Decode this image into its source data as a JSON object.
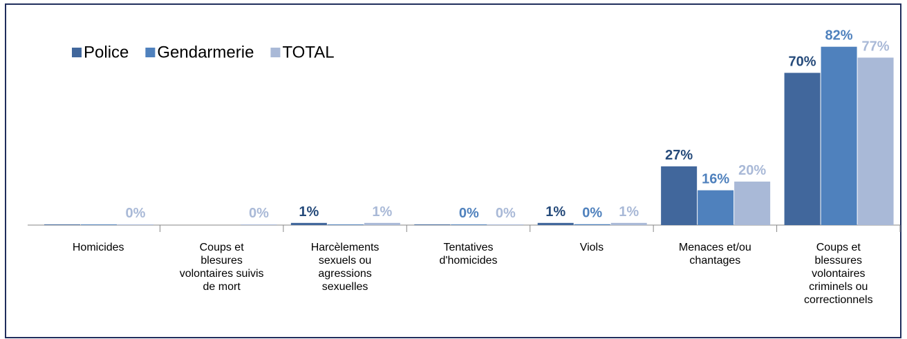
{
  "chart_data": {
    "type": "bar",
    "categories": [
      "Homicides",
      "Coups et\nblesures\nvolontaires suivis\nde mort",
      "Harcèlements\nsexuels ou\nagressions\nsexuelles",
      "Tentatives\nd'homicides",
      "Viols",
      "Menaces et/ou\nchantages",
      "Coups et\nblessures\nvolontaires\ncriminels ou\ncorrectionnels"
    ],
    "series": [
      {
        "name": "Police",
        "color": "#41679c",
        "label_color": "#254a7a",
        "values": [
          0.3,
          0,
          1,
          0.3,
          1,
          27,
          70
        ],
        "value_labels": [
          null,
          null,
          "1%",
          null,
          "1%",
          "27%",
          "70%"
        ]
      },
      {
        "name": "Gendarmerie",
        "color": "#4f81bd",
        "label_color": "#4f81bd",
        "values": [
          0.3,
          0,
          0.3,
          0.3,
          0.4,
          16,
          82
        ],
        "value_labels": [
          null,
          null,
          null,
          "0%",
          "0%",
          "16%",
          "82%"
        ]
      },
      {
        "name": "TOTAL",
        "color": "#a9b9d7",
        "label_color": "#a9b9d7",
        "values": [
          0.3,
          0.3,
          1,
          0.3,
          1,
          20,
          77
        ],
        "value_labels": [
          "0%",
          "0%",
          "1%",
          "0%",
          "1%",
          "20%",
          "77%"
        ]
      }
    ],
    "ylim": [
      0,
      100
    ],
    "legend": "top-left"
  }
}
